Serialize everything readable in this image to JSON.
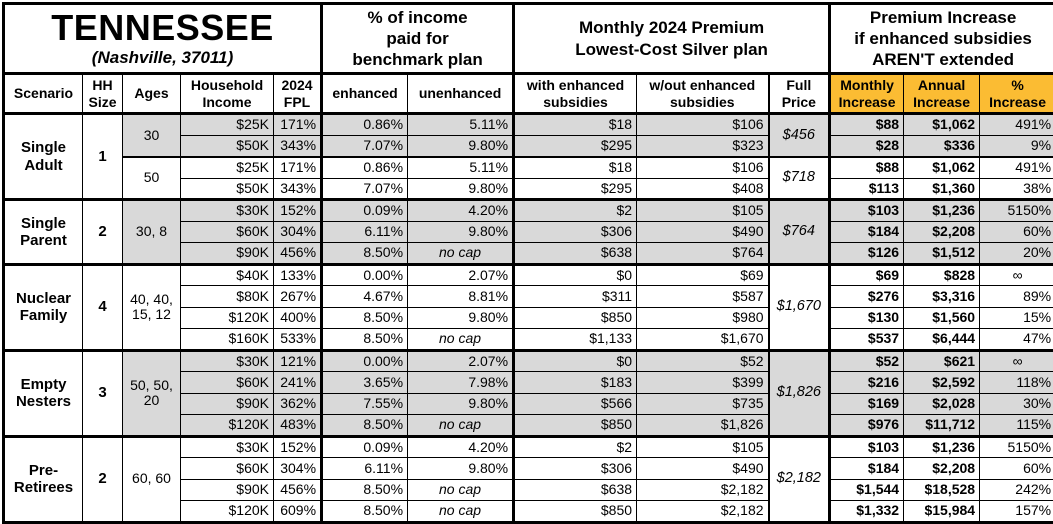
{
  "title": {
    "state": "TENNESSEE",
    "location": "(Nashville, 37011)"
  },
  "colors": {
    "accent_orange": "#FBBC33",
    "shade_gray": "#D9D9D9"
  },
  "table": {
    "group_headers": {
      "benchmark": "% of income\npaid for\nbenchmark plan",
      "premium": "Monthly 2024 Premium\nLowest-Cost Silver plan",
      "increase": "Premium Increase\nif enhanced subsidies\nAREN'T extended"
    },
    "columns": [
      "Scenario",
      "HH\nSize",
      "Ages",
      "Household\nIncome",
      "2024\nFPL",
      "enhanced",
      "unenhanced",
      "with enhanced\nsubsidies",
      "w/out enhanced\nsubsidies",
      "Full\nPrice",
      "Monthly\nIncrease",
      "Annual\nIncrease",
      "%\nIncrease"
    ],
    "groups": [
      {
        "scenario": "Single\nAdult",
        "hh_size": "1",
        "subgroups": [
          {
            "ages": "30",
            "shaded": true,
            "full_price": "$456",
            "rows": [
              {
                "income": "$25K",
                "fpl": "171%",
                "enhanced": "0.86%",
                "unenhanced": "5.11%",
                "with_subsidies": "$18",
                "without_subsidies": "$106",
                "monthly_increase": "$88",
                "annual_increase": "$1,062",
                "pct_increase": "491%"
              },
              {
                "income": "$50K",
                "fpl": "343%",
                "enhanced": "7.07%",
                "unenhanced": "9.80%",
                "with_subsidies": "$295",
                "without_subsidies": "$323",
                "monthly_increase": "$28",
                "annual_increase": "$336",
                "pct_increase": "9%"
              }
            ]
          },
          {
            "ages": "50",
            "shaded": false,
            "full_price": "$718",
            "rows": [
              {
                "income": "$25K",
                "fpl": "171%",
                "enhanced": "0.86%",
                "unenhanced": "5.11%",
                "with_subsidies": "$18",
                "without_subsidies": "$106",
                "monthly_increase": "$88",
                "annual_increase": "$1,062",
                "pct_increase": "491%"
              },
              {
                "income": "$50K",
                "fpl": "343%",
                "enhanced": "7.07%",
                "unenhanced": "9.80%",
                "with_subsidies": "$295",
                "without_subsidies": "$408",
                "monthly_increase": "$113",
                "annual_increase": "$1,360",
                "pct_increase": "38%"
              }
            ]
          }
        ]
      },
      {
        "scenario": "Single\nParent",
        "hh_size": "2",
        "subgroups": [
          {
            "ages": "30, 8",
            "shaded": true,
            "full_price": "$764",
            "rows": [
              {
                "income": "$30K",
                "fpl": "152%",
                "enhanced": "0.09%",
                "unenhanced": "4.20%",
                "with_subsidies": "$2",
                "without_subsidies": "$105",
                "monthly_increase": "$103",
                "annual_increase": "$1,236",
                "pct_increase": "5150%"
              },
              {
                "income": "$60K",
                "fpl": "304%",
                "enhanced": "6.11%",
                "unenhanced": "9.80%",
                "with_subsidies": "$306",
                "without_subsidies": "$490",
                "monthly_increase": "$184",
                "annual_increase": "$2,208",
                "pct_increase": "60%"
              },
              {
                "income": "$90K",
                "fpl": "456%",
                "enhanced": "8.50%",
                "unenhanced": "no cap",
                "with_subsidies": "$638",
                "without_subsidies": "$764",
                "monthly_increase": "$126",
                "annual_increase": "$1,512",
                "pct_increase": "20%"
              }
            ]
          }
        ]
      },
      {
        "scenario": "Nuclear\nFamily",
        "hh_size": "4",
        "subgroups": [
          {
            "ages": "40, 40,\n15, 12",
            "shaded": false,
            "full_price": "$1,670",
            "rows": [
              {
                "income": "$40K",
                "fpl": "133%",
                "enhanced": "0.00%",
                "unenhanced": "2.07%",
                "with_subsidies": "$0",
                "without_subsidies": "$69",
                "monthly_increase": "$69",
                "annual_increase": "$828",
                "pct_increase": "∞"
              },
              {
                "income": "$80K",
                "fpl": "267%",
                "enhanced": "4.67%",
                "unenhanced": "8.81%",
                "with_subsidies": "$311",
                "without_subsidies": "$587",
                "monthly_increase": "$276",
                "annual_increase": "$3,316",
                "pct_increase": "89%"
              },
              {
                "income": "$120K",
                "fpl": "400%",
                "enhanced": "8.50%",
                "unenhanced": "9.80%",
                "with_subsidies": "$850",
                "without_subsidies": "$980",
                "monthly_increase": "$130",
                "annual_increase": "$1,560",
                "pct_increase": "15%"
              },
              {
                "income": "$160K",
                "fpl": "533%",
                "enhanced": "8.50%",
                "unenhanced": "no cap",
                "with_subsidies": "$1,133",
                "without_subsidies": "$1,670",
                "monthly_increase": "$537",
                "annual_increase": "$6,444",
                "pct_increase": "47%"
              }
            ]
          }
        ]
      },
      {
        "scenario": "Empty\nNesters",
        "hh_size": "3",
        "subgroups": [
          {
            "ages": "50, 50,\n20",
            "shaded": true,
            "full_price": "$1,826",
            "rows": [
              {
                "income": "$30K",
                "fpl": "121%",
                "enhanced": "0.00%",
                "unenhanced": "2.07%",
                "with_subsidies": "$0",
                "without_subsidies": "$52",
                "monthly_increase": "$52",
                "annual_increase": "$621",
                "pct_increase": "∞"
              },
              {
                "income": "$60K",
                "fpl": "241%",
                "enhanced": "3.65%",
                "unenhanced": "7.98%",
                "with_subsidies": "$183",
                "without_subsidies": "$399",
                "monthly_increase": "$216",
                "annual_increase": "$2,592",
                "pct_increase": "118%"
              },
              {
                "income": "$90K",
                "fpl": "362%",
                "enhanced": "7.55%",
                "unenhanced": "9.80%",
                "with_subsidies": "$566",
                "without_subsidies": "$735",
                "monthly_increase": "$169",
                "annual_increase": "$2,028",
                "pct_increase": "30%"
              },
              {
                "income": "$120K",
                "fpl": "483%",
                "enhanced": "8.50%",
                "unenhanced": "no cap",
                "with_subsidies": "$850",
                "without_subsidies": "$1,826",
                "monthly_increase": "$976",
                "annual_increase": "$11,712",
                "pct_increase": "115%"
              }
            ]
          }
        ]
      },
      {
        "scenario": "Pre-\nRetirees",
        "hh_size": "2",
        "subgroups": [
          {
            "ages": "60, 60",
            "shaded": false,
            "full_price": "$2,182",
            "rows": [
              {
                "income": "$30K",
                "fpl": "152%",
                "enhanced": "0.09%",
                "unenhanced": "4.20%",
                "with_subsidies": "$2",
                "without_subsidies": "$105",
                "monthly_increase": "$103",
                "annual_increase": "$1,236",
                "pct_increase": "5150%"
              },
              {
                "income": "$60K",
                "fpl": "304%",
                "enhanced": "6.11%",
                "unenhanced": "9.80%",
                "with_subsidies": "$306",
                "without_subsidies": "$490",
                "monthly_increase": "$184",
                "annual_increase": "$2,208",
                "pct_increase": "60%"
              },
              {
                "income": "$90K",
                "fpl": "456%",
                "enhanced": "8.50%",
                "unenhanced": "no cap",
                "with_subsidies": "$638",
                "without_subsidies": "$2,182",
                "monthly_increase": "$1,544",
                "annual_increase": "$18,528",
                "pct_increase": "242%"
              },
              {
                "income": "$120K",
                "fpl": "609%",
                "enhanced": "8.50%",
                "unenhanced": "no cap",
                "with_subsidies": "$850",
                "without_subsidies": "$2,182",
                "monthly_increase": "$1,332",
                "annual_increase": "$15,984",
                "pct_increase": "157%"
              }
            ]
          }
        ]
      }
    ]
  }
}
